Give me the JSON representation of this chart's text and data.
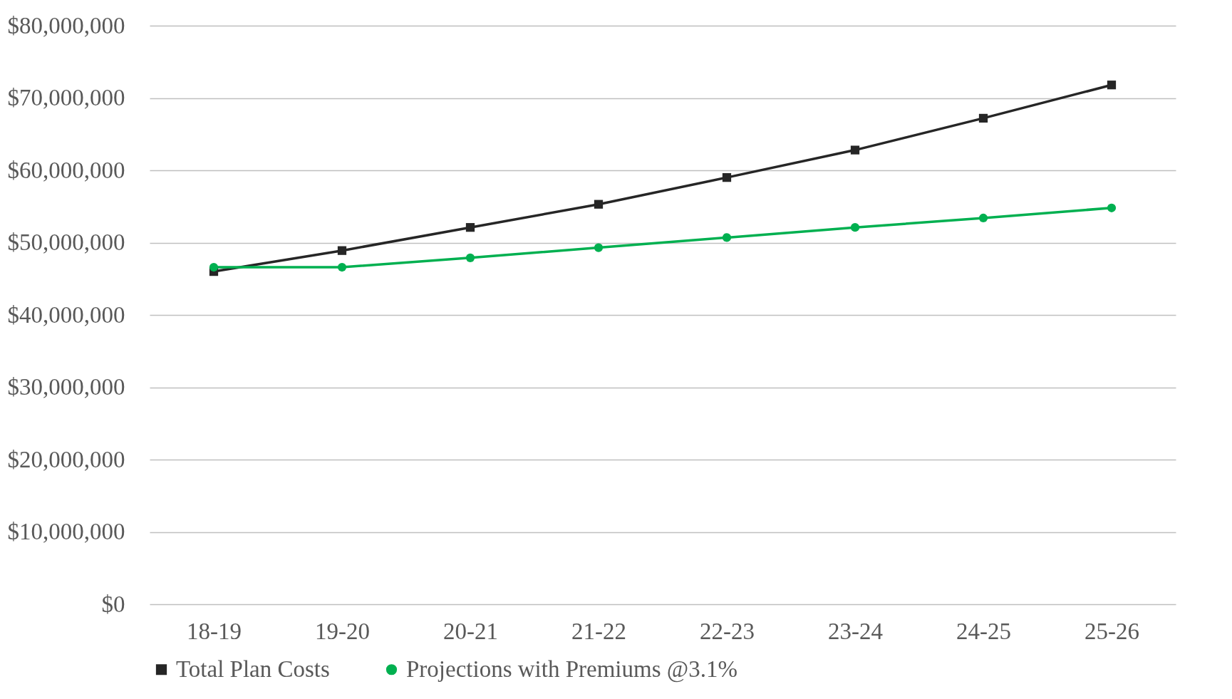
{
  "chart_data": {
    "type": "line",
    "categories": [
      "18-19",
      "19-20",
      "20-21",
      "21-22",
      "22-23",
      "23-24",
      "24-25",
      "25-26"
    ],
    "series": [
      {
        "name": "Total Plan Costs",
        "color": "#262626",
        "marker": "square",
        "values": [
          46000000,
          48900000,
          52100000,
          55300000,
          59000000,
          62800000,
          67200000,
          71800000
        ]
      },
      {
        "name": "Projections with Premiums @3.1%",
        "color": "#00b050",
        "marker": "circle",
        "values": [
          46600000,
          46600000,
          47900000,
          49300000,
          50700000,
          52100000,
          53400000,
          54800000
        ]
      }
    ],
    "ylim": [
      0,
      80000000
    ],
    "yticks": [
      {
        "value": 0,
        "label": "$0"
      },
      {
        "value": 10000000,
        "label": "$10,000,000"
      },
      {
        "value": 20000000,
        "label": "$20,000,000"
      },
      {
        "value": 30000000,
        "label": "$30,000,000"
      },
      {
        "value": 40000000,
        "label": "$40,000,000"
      },
      {
        "value": 50000000,
        "label": "$50,000,000"
      },
      {
        "value": 60000000,
        "label": "$60,000,000"
      },
      {
        "value": 70000000,
        "label": "$70,000,000"
      },
      {
        "value": 80000000,
        "label": "$80,000,000"
      }
    ],
    "line_style": "solid",
    "grid": "y",
    "legend": "bottom left"
  }
}
